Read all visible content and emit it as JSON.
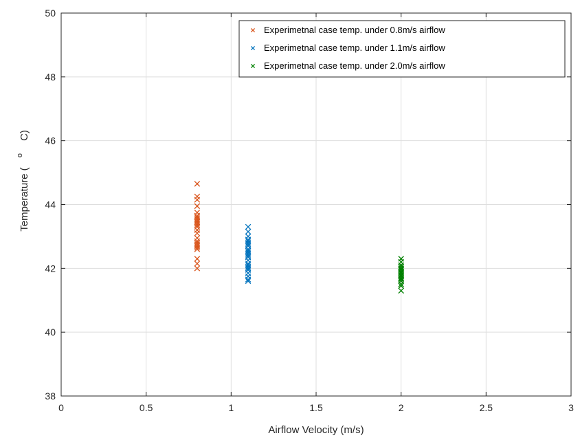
{
  "chart_data": {
    "type": "scatter",
    "title": "",
    "xlabel": "Airflow Velocity (m/s)",
    "ylabel_main": "Temperature (",
    "ylabel_degree": "o",
    "ylabel_unit": "C)",
    "xlim": [
      0,
      3
    ],
    "ylim": [
      38,
      50
    ],
    "x_ticks": [
      0,
      0.5,
      1,
      1.5,
      2,
      2.5,
      3
    ],
    "x_tick_labels": [
      "0",
      "0.5",
      "1",
      "1.5",
      "2",
      "2.5",
      "3"
    ],
    "y_ticks": [
      38,
      40,
      42,
      44,
      46,
      48,
      50
    ],
    "y_tick_labels": [
      "38",
      "40",
      "42",
      "44",
      "46",
      "48",
      "50"
    ],
    "grid": true,
    "legend_position": "top-right",
    "series": [
      {
        "name": "Experimetnal case temp. under 0.8m/s airflow",
        "color": "#D95319",
        "marker": "x",
        "x": [
          0.8,
          0.8,
          0.8,
          0.8,
          0.8,
          0.8,
          0.8,
          0.8,
          0.8,
          0.8,
          0.8,
          0.8,
          0.8,
          0.8,
          0.8,
          0.8,
          0.8,
          0.8,
          0.8,
          0.8,
          0.8,
          0.8,
          0.8,
          0.8,
          0.8
        ],
        "y": [
          44.65,
          44.25,
          44.15,
          43.95,
          43.75,
          43.65,
          43.6,
          43.5,
          43.45,
          43.4,
          43.3,
          43.2,
          42.95,
          42.85,
          42.8,
          42.75,
          42.7,
          42.65,
          42.6,
          42.3,
          42.15,
          42.0,
          43.55,
          43.35,
          43.1
        ]
      },
      {
        "name": "Experimetnal case temp. under 1.1m/s airflow",
        "color": "#0072BD",
        "marker": "x",
        "x": [
          1.1,
          1.1,
          1.1,
          1.1,
          1.1,
          1.1,
          1.1,
          1.1,
          1.1,
          1.1,
          1.1,
          1.1,
          1.1,
          1.1,
          1.1,
          1.1,
          1.1,
          1.1,
          1.1,
          1.1,
          1.1,
          1.1,
          1.1,
          1.1
        ],
        "y": [
          43.3,
          43.15,
          43.0,
          42.9,
          42.8,
          42.75,
          42.7,
          42.6,
          42.5,
          42.45,
          42.35,
          42.25,
          42.15,
          42.1,
          42.05,
          41.95,
          41.85,
          41.75,
          41.65,
          41.6,
          42.4,
          42.55,
          42.85,
          42.0
        ]
      },
      {
        "name": "Experimetnal case temp. under 2.0m/s airflow",
        "color": "#008000",
        "marker": "x",
        "x": [
          2.0,
          2.0,
          2.0,
          2.0,
          2.0,
          2.0,
          2.0,
          2.0,
          2.0,
          2.0,
          2.0,
          2.0,
          2.0,
          2.0,
          2.0,
          2.0,
          2.0,
          2.0,
          2.0,
          2.0
        ],
        "y": [
          42.3,
          42.2,
          42.1,
          42.0,
          41.95,
          41.9,
          41.85,
          41.8,
          41.75,
          41.7,
          41.65,
          41.6,
          41.5,
          41.45,
          41.3,
          42.05,
          41.98,
          41.88,
          41.78,
          41.68
        ]
      }
    ]
  }
}
